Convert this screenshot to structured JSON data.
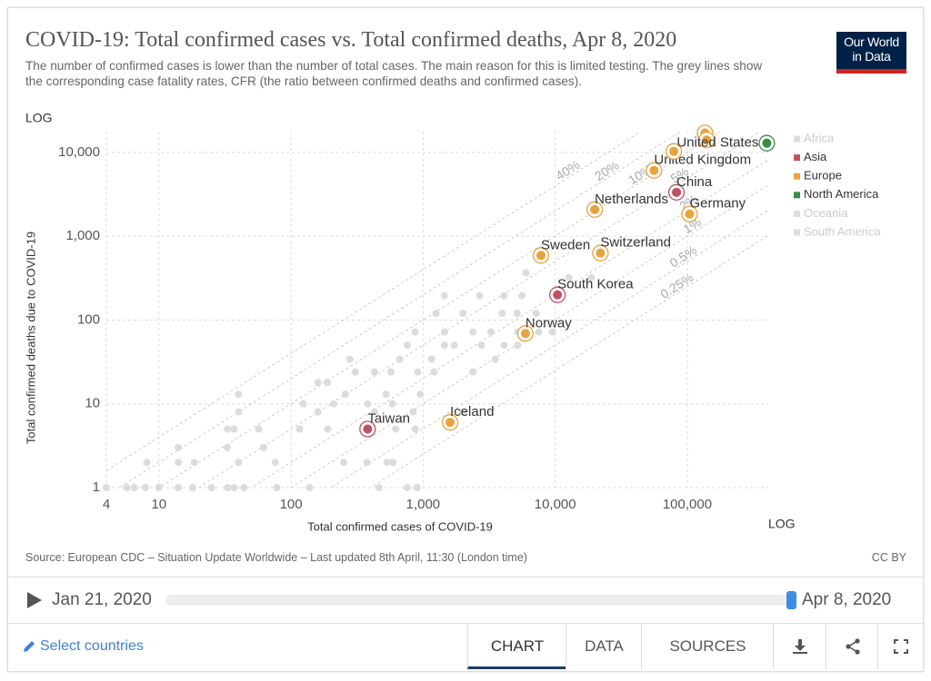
{
  "chart_data": {
    "type": "scatter",
    "title": "COVID-19: Total confirmed cases vs. Total confirmed deaths, Apr 8, 2020",
    "subtitle": "The number of confirmed cases is lower than the number of total cases. The main reason for this is limited testing. The grey lines show the corresponding case fatality rates, CFR (the ratio between confirmed deaths and confirmed cases).",
    "xlabel": "Total confirmed cases of COVID-19",
    "ylabel": "Total confirmed deaths due to COVID-19",
    "x_scale_label": "LOG",
    "y_scale_label": "LOG",
    "xscale": "log",
    "yscale": "log",
    "grid": true,
    "xlim": [
      4,
      410000
    ],
    "ylim": [
      1,
      17700
    ],
    "xticks": [
      4,
      10,
      100,
      {
        "value": 1000,
        "label": "1,000"
      },
      {
        "value": 10000,
        "label": "10,000"
      },
      {
        "value": 100000,
        "label": "100,000"
      }
    ],
    "yticks": [
      1,
      10,
      100,
      {
        "value": 1000,
        "label": "1,000"
      },
      {
        "value": 10000,
        "label": "10,000"
      }
    ],
    "cfr_lines": [
      {
        "value": 0.4,
        "label": "40%"
      },
      {
        "value": 0.2,
        "label": "20%"
      },
      {
        "value": 0.1,
        "label": "10%"
      },
      {
        "value": 0.05,
        "label": "5%"
      },
      {
        "value": 0.02,
        "label": "2%"
      },
      {
        "value": 0.01,
        "label": "1%"
      },
      {
        "value": 0.005,
        "label": "0.5%"
      },
      {
        "value": 0.0025,
        "label": "0.25%"
      }
    ],
    "series": [
      {
        "name": "Africa",
        "color": "#dddddd",
        "faded": true,
        "x": [],
        "values": [],
        "labels": []
      },
      {
        "name": "Asia",
        "color": "#c15065",
        "faded": false,
        "x": [
          10400,
          82800,
          380
        ],
        "values": [
          200,
          3340,
          5
        ],
        "labels": [
          "South Korea",
          "China",
          "Taiwan"
        ]
      },
      {
        "name": "Europe",
        "color": "#e8a33d",
        "faded": false,
        "x": [
          19900,
          104000,
          7800,
          22000,
          5950,
          1600,
          56000,
          79000,
          136000,
          140000
        ],
        "values": [
          2080,
          1840,
          590,
          630,
          69,
          6,
          6100,
          10300,
          17100,
          14100
        ],
        "labels": [
          "Netherlands",
          "Germany",
          "Sweden",
          "Switzerland",
          "Norway",
          "Iceland",
          "United Kingdom",
          null,
          null,
          null
        ]
      },
      {
        "name": "North America",
        "color": "#3c8a43",
        "faded": false,
        "x": [
          400000
        ],
        "values": [
          12900
        ],
        "labels": [
          "United States"
        ]
      },
      {
        "name": "Oceania",
        "color": "#dddddd",
        "faded": true,
        "x": [],
        "values": [],
        "labels": []
      },
      {
        "name": "South America",
        "color": "#dddddd",
        "faded": true,
        "x": [],
        "values": [],
        "labels": []
      }
    ],
    "others": {
      "color": "#dcdcdc",
      "x": [
        4,
        5.7,
        6.5,
        7.9,
        10,
        14,
        18,
        25,
        33,
        37,
        44,
        78,
        138,
        464,
        758,
        902,
        8.1,
        14,
        18.5,
        40,
        76,
        250,
        375,
        532,
        593,
        14,
        33,
        62,
        33,
        37,
        57,
        116,
        190,
        620,
        870,
        40,
        160,
        428,
        840,
        2000,
        124,
        210,
        380,
        585,
        40,
        258,
        523,
        950,
        160,
        188,
        307,
        428,
        570,
        910,
        1210,
        2380,
        278,
        665,
        1160,
        3520,
        758,
        1450,
        1720,
        2770,
        4100,
        5200,
        870,
        1450,
        2380,
        3260,
        5200,
        7500,
        9530,
        1250,
        2000,
        3960,
        5150,
        7170,
        1450,
        2680,
        4100,
        5600,
        12700,
        18700,
        6000
      ],
      "values": [
        1,
        1,
        1,
        1,
        1,
        1,
        1,
        1,
        1,
        1,
        1,
        1,
        1,
        1,
        1,
        1,
        2,
        2,
        2,
        2,
        2,
        2,
        2,
        2,
        2,
        3,
        3,
        3,
        5,
        5,
        5,
        5,
        5,
        5,
        5,
        8,
        8,
        8,
        8,
        8,
        10,
        10,
        10,
        10,
        13,
        13,
        13,
        13,
        18,
        18,
        24,
        24,
        24,
        24,
        24,
        24,
        34,
        34,
        34,
        34,
        50,
        50,
        50,
        50,
        50,
        50,
        72,
        72,
        72,
        72,
        72,
        72,
        72,
        120,
        120,
        120,
        120,
        120,
        195,
        195,
        195,
        195,
        320,
        320,
        365
      ]
    }
  },
  "logo": [
    "Our World",
    "in Data"
  ],
  "footer": {
    "source": "Source: European CDC – Situation Update Worldwide – Last updated 8th April, 11:30 (London time)",
    "license": "CC BY"
  },
  "timeline": {
    "start": "Jan 21, 2020",
    "end": "Apr 8, 2020"
  },
  "controls": {
    "select": "Select countries",
    "tabs": [
      "CHART",
      "DATA",
      "SOURCES"
    ]
  }
}
